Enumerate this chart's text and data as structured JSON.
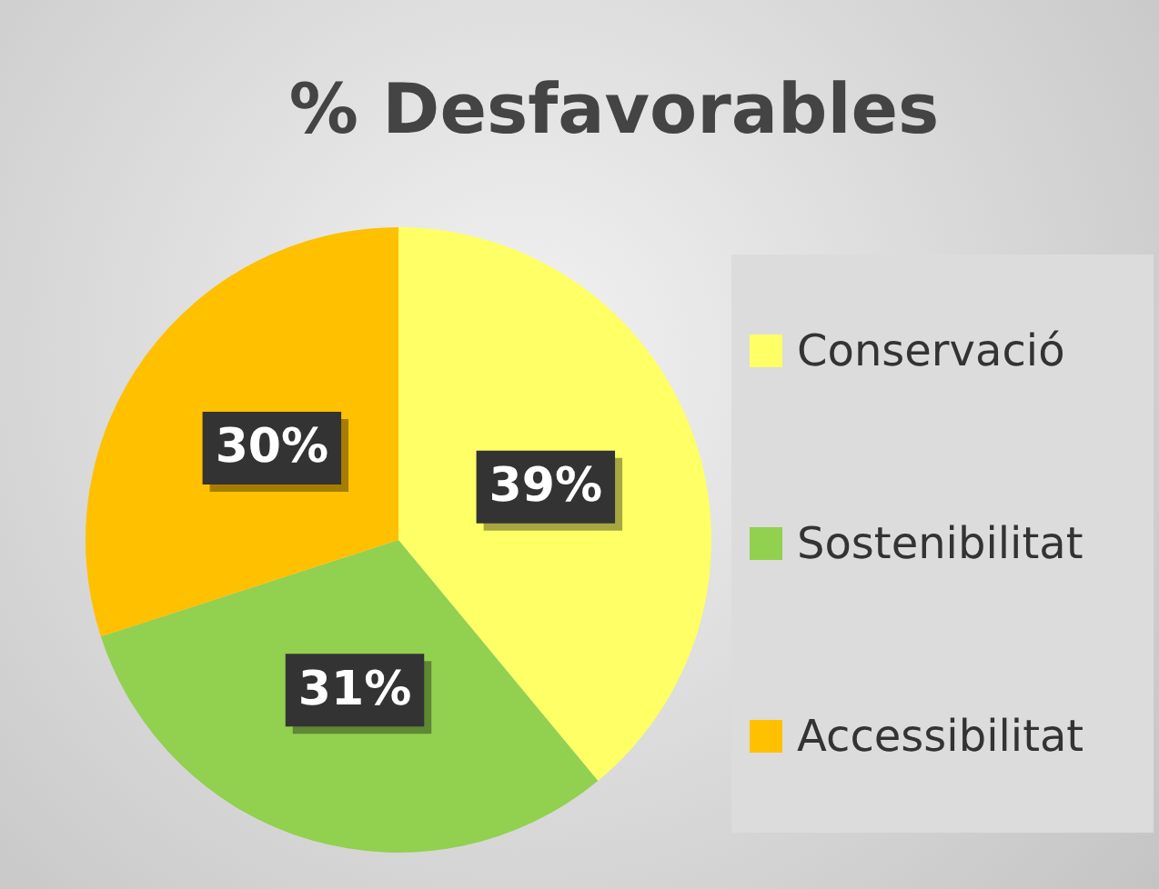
{
  "chart_data": {
    "type": "pie",
    "title": "% Desfavorables",
    "categories": [
      "Conservació",
      "Sostenibilitat",
      "Accessibilitat"
    ],
    "values": [
      39,
      31,
      30
    ],
    "colors": [
      "#ffff66",
      "#92d050",
      "#ffc000"
    ],
    "value_labels": [
      "39%",
      "31%",
      "30%"
    ],
    "legend": "right"
  }
}
